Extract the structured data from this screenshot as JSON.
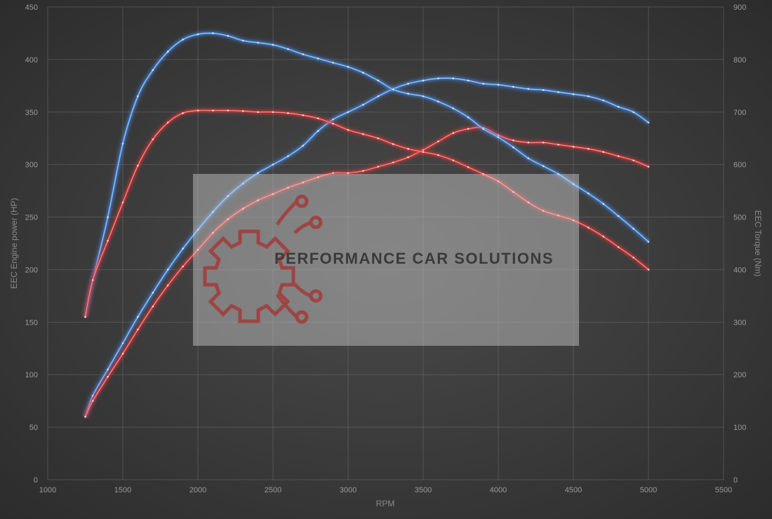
{
  "chart_data": {
    "type": "line",
    "xlabel": "RPM",
    "ylabel": "EEC Engine power (HP)",
    "y2label": "EEC Torque (Nm)",
    "xlim": [
      1000,
      5500
    ],
    "ylim": [
      0,
      450
    ],
    "y2lim": [
      0,
      900
    ],
    "x_ticks": [
      1000,
      1500,
      2000,
      2500,
      3000,
      3500,
      4000,
      4500,
      5000,
      5500
    ],
    "y_ticks": [
      0,
      50,
      100,
      150,
      200,
      250,
      300,
      350,
      400,
      450
    ],
    "y2_ticks": [
      0,
      100,
      200,
      300,
      400,
      500,
      600,
      700,
      800,
      900
    ],
    "grid": true,
    "series": [
      {
        "axis": "left",
        "color": "#4a8fe8",
        "x": [
          1250,
          1300,
          1400,
          1500,
          1600,
          1700,
          1800,
          1900,
          2000,
          2100,
          2200,
          2300,
          2400,
          2500,
          2600,
          2700,
          2800,
          2900,
          3000,
          3100,
          3200,
          3300,
          3400,
          3500,
          3600,
          3700,
          3800,
          3900,
          4000,
          4100,
          4200,
          4300,
          4400,
          4500,
          4600,
          4700,
          4800,
          4900,
          5000
        ],
        "y": [
          60,
          80,
          105,
          130,
          155,
          178,
          200,
          220,
          238,
          255,
          270,
          282,
          292,
          300,
          308,
          318,
          332,
          343,
          350,
          357,
          365,
          372,
          377,
          380,
          382,
          382,
          380,
          377,
          376,
          374,
          372,
          371,
          369,
          367,
          365,
          361,
          355,
          350,
          340
        ]
      },
      {
        "axis": "left",
        "color": "#e23a3a",
        "x": [
          1250,
          1300,
          1400,
          1500,
          1600,
          1700,
          1800,
          1900,
          2000,
          2100,
          2200,
          2300,
          2400,
          2500,
          2600,
          2700,
          2800,
          2900,
          3000,
          3100,
          3200,
          3300,
          3400,
          3500,
          3600,
          3700,
          3800,
          3900,
          4000,
          4100,
          4200,
          4300,
          4400,
          4500,
          4600,
          4700,
          4800,
          4900,
          5000
        ],
        "y": [
          60,
          75,
          98,
          120,
          143,
          165,
          185,
          203,
          219,
          235,
          248,
          258,
          266,
          272,
          278,
          283,
          288,
          292,
          292,
          294,
          298,
          302,
          307,
          314,
          322,
          330,
          334,
          335,
          328,
          323,
          321,
          321,
          319,
          317,
          315,
          312,
          308,
          304,
          298
        ]
      },
      {
        "axis": "right",
        "color": "#4a8fe8",
        "x": [
          1250,
          1300,
          1400,
          1500,
          1600,
          1700,
          1800,
          1900,
          2000,
          2100,
          2200,
          2300,
          2400,
          2500,
          2600,
          2700,
          2800,
          2900,
          3000,
          3100,
          3200,
          3300,
          3400,
          3500,
          3600,
          3700,
          3800,
          3900,
          4000,
          4100,
          4200,
          4300,
          4400,
          4500,
          4600,
          4700,
          4800,
          4900,
          5000
        ],
        "y": [
          310,
          380,
          500,
          640,
          730,
          780,
          815,
          838,
          848,
          850,
          845,
          836,
          832,
          828,
          820,
          810,
          802,
          794,
          786,
          775,
          760,
          743,
          735,
          730,
          720,
          707,
          690,
          668,
          652,
          633,
          612,
          597,
          582,
          563,
          545,
          525,
          502,
          478,
          453
        ]
      },
      {
        "axis": "right",
        "color": "#e23a3a",
        "x": [
          1250,
          1300,
          1400,
          1500,
          1600,
          1700,
          1800,
          1900,
          2000,
          2100,
          2200,
          2300,
          2400,
          2500,
          2600,
          2700,
          2800,
          2900,
          3000,
          3100,
          3200,
          3300,
          3400,
          3500,
          3600,
          3700,
          3800,
          3900,
          4000,
          4100,
          4200,
          4300,
          4400,
          4500,
          4600,
          4700,
          4800,
          4900,
          5000
        ],
        "y": [
          310,
          380,
          455,
          528,
          598,
          648,
          680,
          698,
          703,
          703,
          703,
          702,
          700,
          700,
          698,
          694,
          688,
          678,
          666,
          658,
          650,
          639,
          630,
          624,
          618,
          608,
          595,
          582,
          568,
          548,
          528,
          512,
          503,
          494,
          480,
          463,
          443,
          423,
          400
        ]
      }
    ]
  },
  "watermark": {
    "text": "PERFORMANCE CAR SOLUTIONS",
    "logo_color": "#a33a3a"
  }
}
